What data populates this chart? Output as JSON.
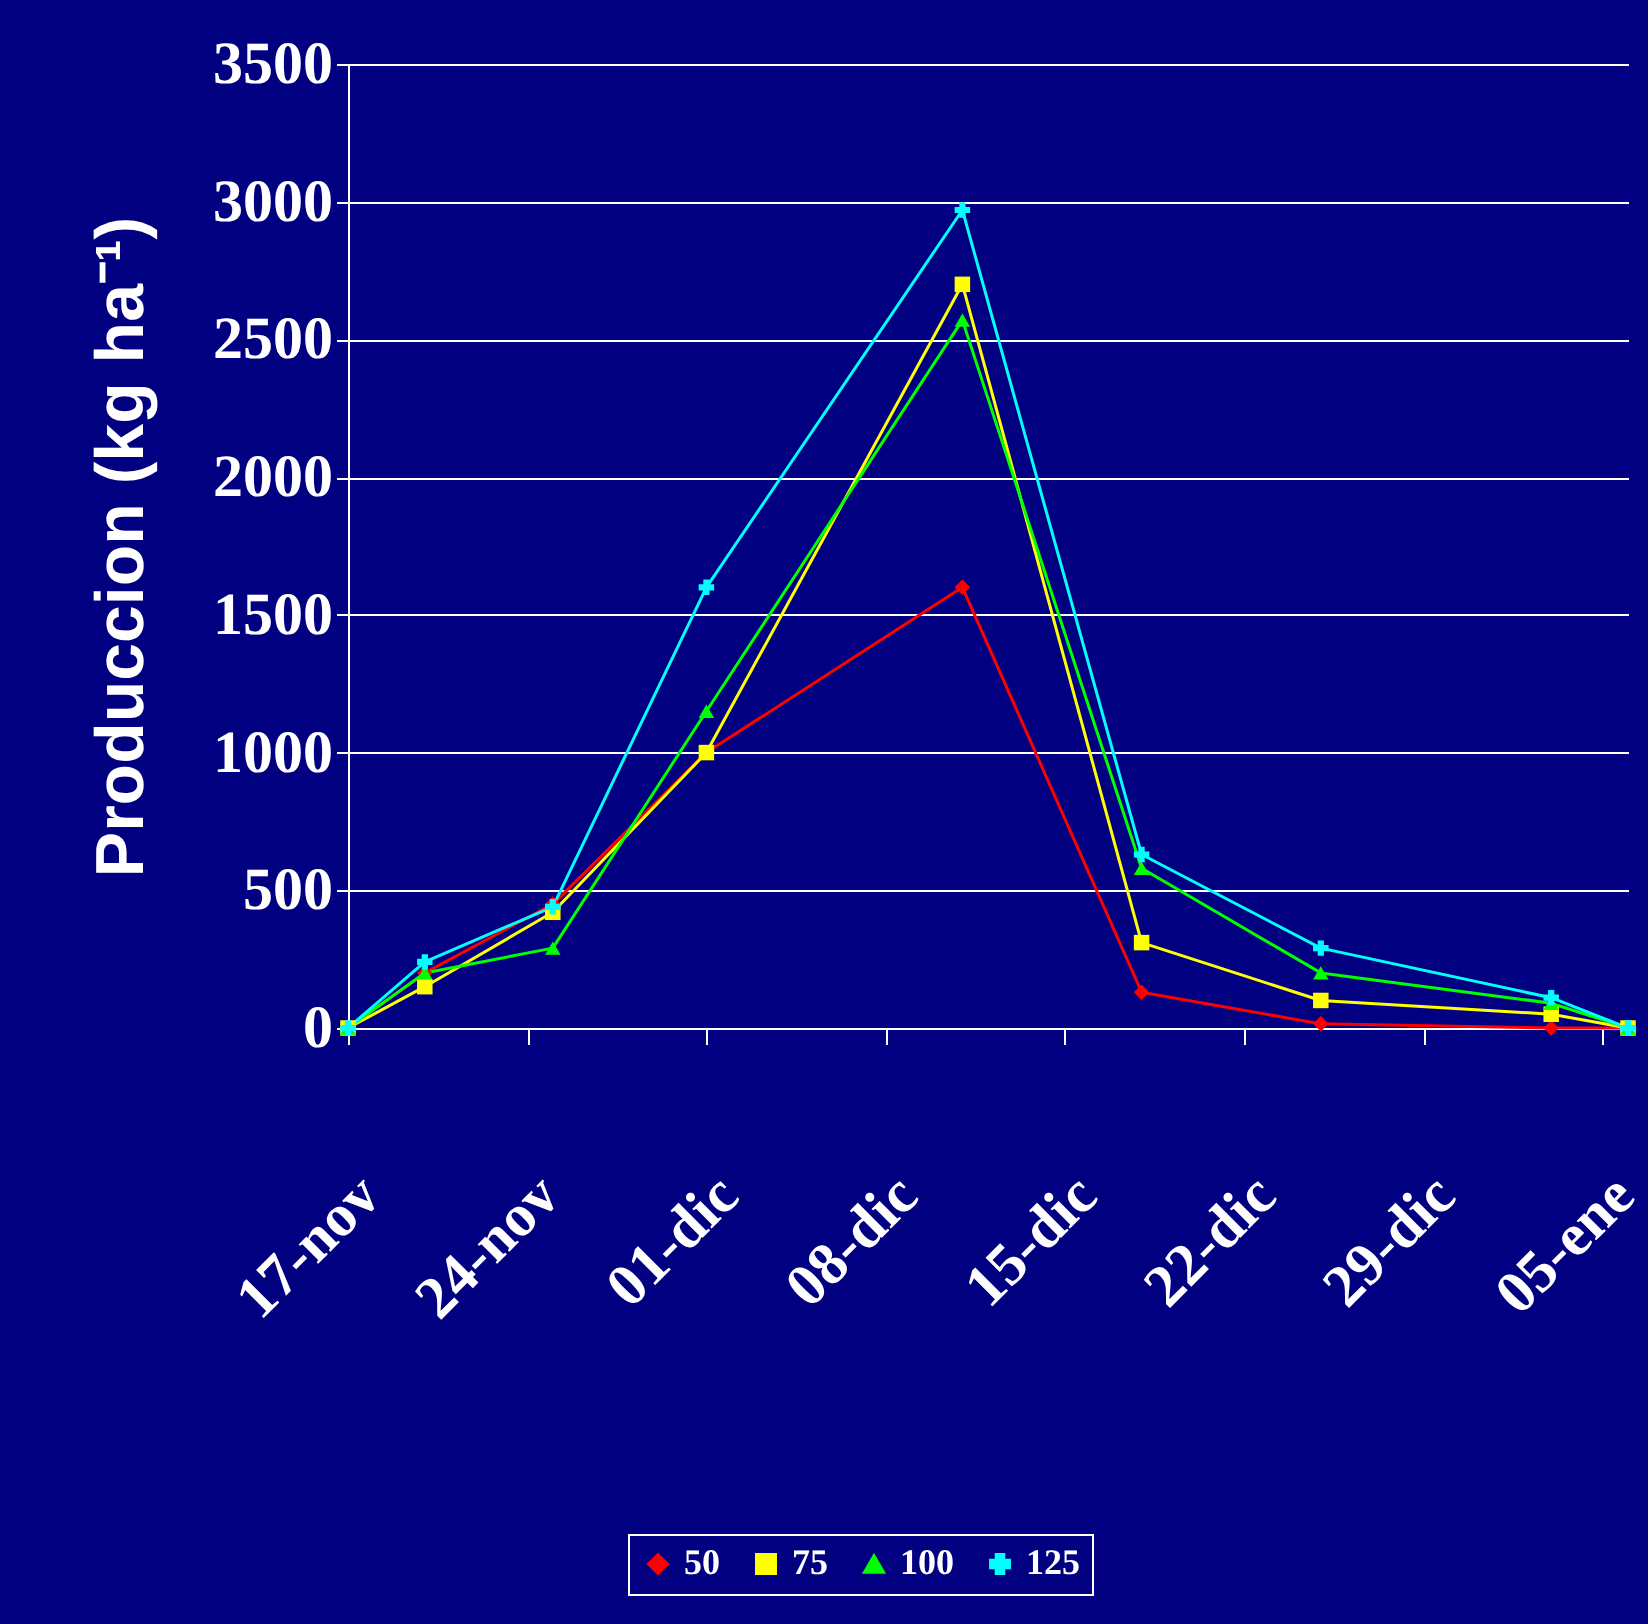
{
  "chart_data": {
    "type": "line",
    "ylabel": "Produccion (kg ha⁻¹)",
    "x": [
      "2000-11-17",
      "2000-11-20",
      "2000-11-25",
      "2000-12-01",
      "2000-12-11",
      "2000-12-18",
      "2000-12-25",
      "2001-01-03",
      "2001-01-06"
    ],
    "xlim": [
      "2000-11-17",
      "2001-01-06"
    ],
    "xticks": [
      {
        "value": "2000-11-17",
        "label": "17-nov"
      },
      {
        "value": "2000-11-24",
        "label": "24-nov"
      },
      {
        "value": "2000-12-01",
        "label": "01-dic"
      },
      {
        "value": "2000-12-08",
        "label": "08-dic"
      },
      {
        "value": "2000-12-15",
        "label": "15-dic"
      },
      {
        "value": "2000-12-22",
        "label": "22-dic"
      },
      {
        "value": "2000-12-29",
        "label": "29-dic"
      },
      {
        "value": "2001-01-05",
        "label": "05-ene"
      }
    ],
    "ylim": [
      0,
      3500
    ],
    "yticks": [
      0,
      500,
      1000,
      1500,
      2000,
      2500,
      3000,
      3500
    ],
    "grid": "y",
    "legend": "bottom",
    "series": [
      {
        "name": "50",
        "color": "#ff0000",
        "marker": "diamond",
        "values": [
          0,
          200,
          450,
          1000,
          1600,
          130,
          15,
          0,
          0
        ]
      },
      {
        "name": "75",
        "color": "#ffff00",
        "marker": "square",
        "values": [
          0,
          150,
          420,
          1000,
          2700,
          310,
          100,
          50,
          0
        ]
      },
      {
        "name": "100",
        "color": "#00ff00",
        "marker": "triangle",
        "values": [
          0,
          200,
          290,
          1150,
          2570,
          580,
          200,
          90,
          0
        ]
      },
      {
        "name": "125",
        "color": "#00ffff",
        "marker": "cross",
        "values": [
          0,
          240,
          440,
          1600,
          2970,
          630,
          290,
          110,
          0
        ]
      }
    ]
  }
}
